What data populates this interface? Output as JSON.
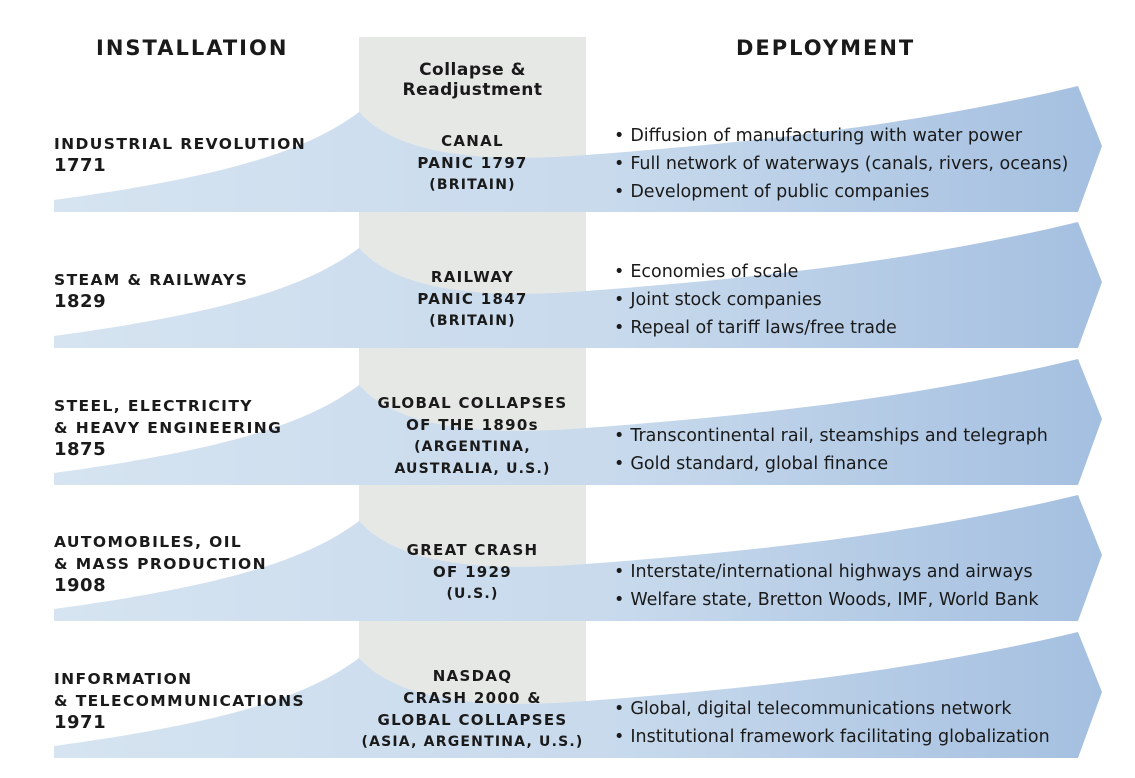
{
  "headers": {
    "installation": "INSTALLATION",
    "collapse": [
      "Collapse &",
      "Readjustment"
    ],
    "deployment": "DEPLOYMENT"
  },
  "colors": {
    "wave_light": "#d3e2f0",
    "wave_dark": "#a4bfe0",
    "band": "#e6e8e6",
    "text": "#1a1a1a"
  },
  "rows": [
    {
      "label": [
        "INDUSTRIAL REVOLUTION"
      ],
      "year": "1771",
      "crash": [
        "CANAL",
        "PANIC 1797"
      ],
      "crash_sub": [
        "(BRITAIN)"
      ],
      "bullets": [
        "Diffusion of manufacturing with water power",
        "Full network of waterways (canals, rivers, oceans)",
        "Development of public companies"
      ]
    },
    {
      "label": [
        "STEAM & RAILWAYS"
      ],
      "year": "1829",
      "crash": [
        "RAILWAY",
        "PANIC 1847"
      ],
      "crash_sub": [
        "(BRITAIN)"
      ],
      "bullets": [
        "Economies of scale",
        "Joint stock companies",
        "Repeal of tariff laws/free trade"
      ]
    },
    {
      "label": [
        "STEEL, ELECTRICITY",
        "& HEAVY ENGINEERING"
      ],
      "year": "1875",
      "crash": [
        "GLOBAL COLLAPSES",
        "OF THE 1890s"
      ],
      "crash_sub": [
        "(ARGENTINA,",
        "AUSTRALIA, U.S.)"
      ],
      "bullets": [
        "Transcontinental rail, steamships and telegraph",
        "Gold standard, global finance"
      ]
    },
    {
      "label": [
        "AUTOMOBILES, OIL",
        "& MASS PRODUCTION"
      ],
      "year": "1908",
      "crash": [
        "GREAT CRASH",
        "OF 1929"
      ],
      "crash_sub": [
        "(U.S.)"
      ],
      "bullets": [
        "Interstate/international highways and airways",
        "Welfare state, Bretton Woods, IMF, World Bank"
      ]
    },
    {
      "label": [
        "INFORMATION",
        "& TELECOMMUNICATIONS"
      ],
      "year": "1971",
      "crash": [
        "NASDAQ",
        "CRASH 2000 &",
        "GLOBAL COLLAPSES"
      ],
      "crash_sub": [
        "(ASIA, ARGENTINA, U.S.)"
      ],
      "bullets": [
        "Global, digital telecommunications network",
        "Institutional framework facilitating globalization"
      ]
    }
  ]
}
